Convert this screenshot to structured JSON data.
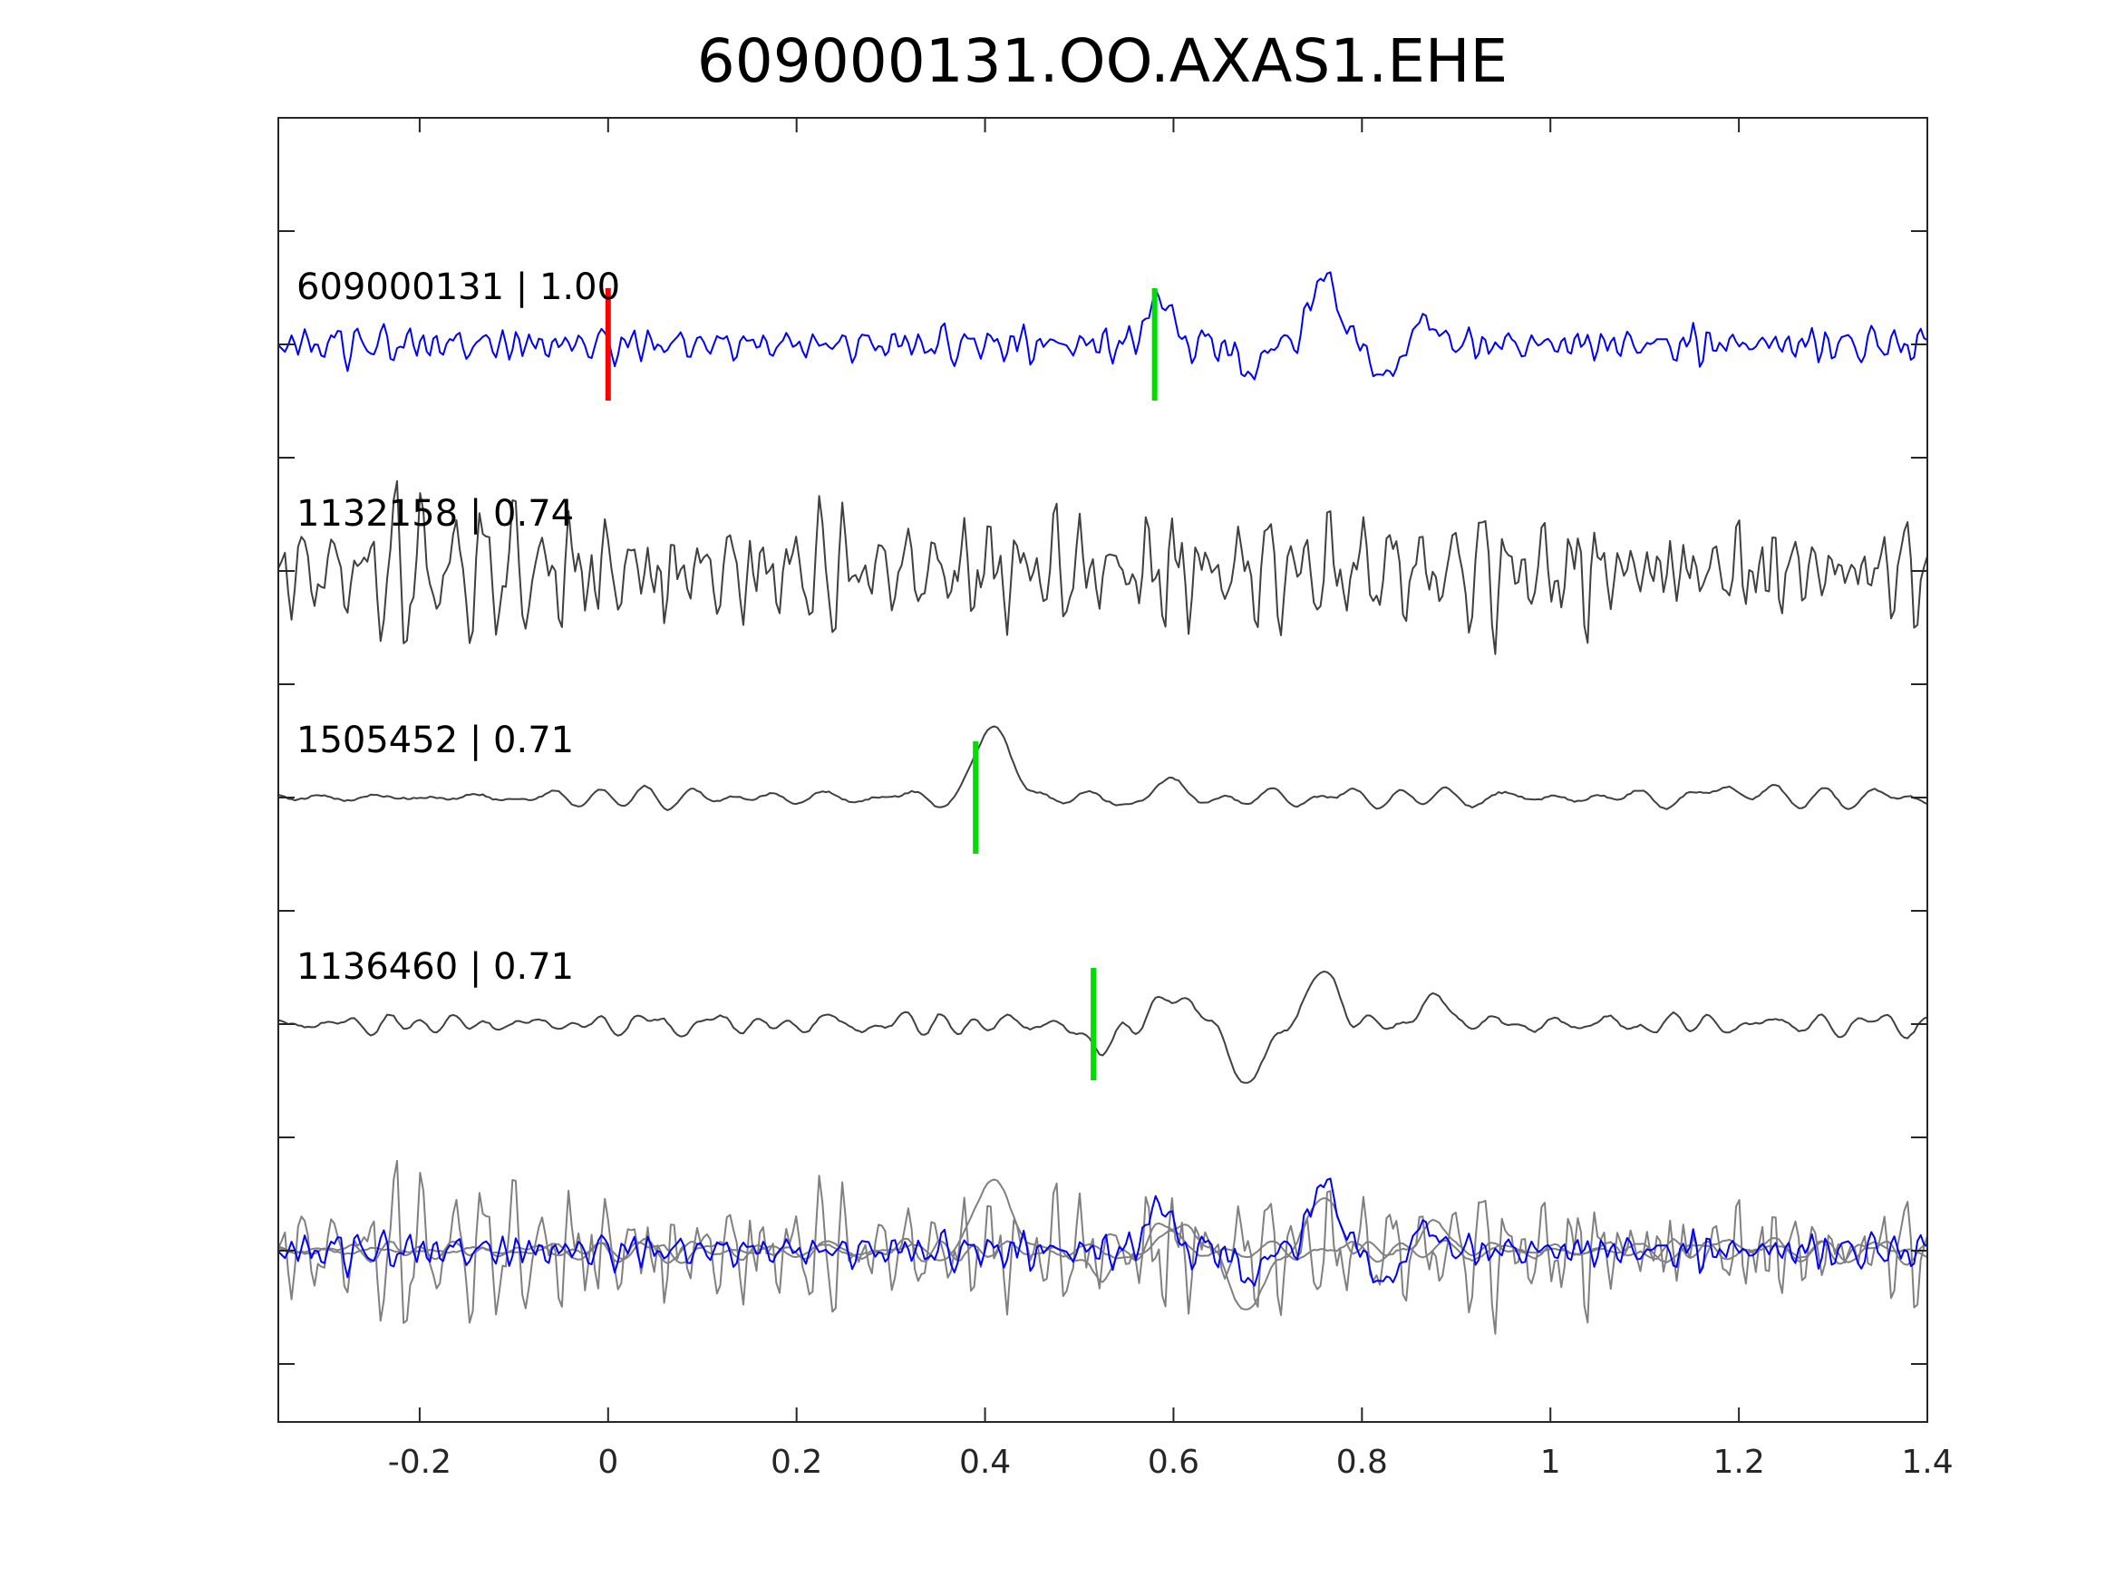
{
  "chart_data": {
    "type": "line",
    "title": "609000131.OO.AXAS1.EHE",
    "xlabel": "",
    "ylabel": "",
    "xlim": [
      -0.35,
      1.4
    ],
    "x_ticks": [
      {
        "value": -0.2,
        "label": "-0.2"
      },
      {
        "value": 0,
        "label": "0"
      },
      {
        "value": 0.2,
        "label": "0.2"
      },
      {
        "value": 0.4,
        "label": "0.4"
      },
      {
        "value": 0.6,
        "label": "0.6"
      },
      {
        "value": 0.8,
        "label": "0.8"
      },
      {
        "value": 1,
        "label": "1"
      },
      {
        "value": 1.2,
        "label": "1.2"
      },
      {
        "value": 1.4,
        "label": "1.4"
      }
    ],
    "y_tick_count": 11,
    "grid": false,
    "traces": [
      {
        "label": "609000131 | 1.00",
        "color": "#0000ff",
        "pick_markers": [
          {
            "x": 0.0,
            "color": "#ff0000"
          },
          {
            "x": 0.58,
            "color": "#00dd00"
          }
        ],
        "noise_amp": 0.14,
        "noise_freq": 55,
        "seed": 3,
        "wavelets": [
          {
            "t": 0.585,
            "amp": 0.85,
            "w": 0.022,
            "f": 7
          },
          {
            "t": 0.68,
            "amp": -0.55,
            "w": 0.02,
            "f": 9
          },
          {
            "t": 0.76,
            "amp": 1.2,
            "w": 0.025,
            "f": 6
          },
          {
            "t": 0.83,
            "amp": -0.7,
            "w": 0.025,
            "f": 6
          },
          {
            "t": 0.86,
            "amp": 0.45,
            "w": 0.03,
            "f": 5
          }
        ]
      },
      {
        "label": "1132158 | 0.74",
        "color": "#404040",
        "pick_markers": [],
        "noise_amp": 0.45,
        "noise_freq": 62,
        "seed": 11,
        "wavelets": [
          {
            "t": 0.06,
            "amp": -0.5,
            "w": 0.012,
            "f": 30
          },
          {
            "t": 0.4,
            "amp": 0.35,
            "w": 0.03,
            "f": 30
          }
        ]
      },
      {
        "label": "1505452 | 0.71",
        "color": "#404040",
        "pick_markers": [
          {
            "x": 0.39,
            "color": "#00dd00"
          }
        ],
        "noise_amp": 0.09,
        "noise_freq": 18,
        "seed": 21,
        "wavelets": [
          {
            "t": 0.41,
            "amp": 1.3,
            "w": 0.03,
            "f": 5
          },
          {
            "t": 0.6,
            "amp": 0.25,
            "w": 0.05,
            "f": 8
          },
          {
            "t": 1.2,
            "amp": 0.25,
            "w": 0.03,
            "f": 8
          }
        ]
      },
      {
        "label": "1136460 | 0.71",
        "color": "#404040",
        "pick_markers": [
          {
            "x": 0.515,
            "color": "#00dd00"
          }
        ],
        "noise_amp": 0.1,
        "noise_freq": 20,
        "seed": 37,
        "wavelets": [
          {
            "t": 0.52,
            "amp": -0.55,
            "w": 0.02,
            "f": 7
          },
          {
            "t": 0.6,
            "amp": 0.5,
            "w": 0.04,
            "f": 6
          },
          {
            "t": 0.68,
            "amp": -1.05,
            "w": 0.03,
            "f": 6
          },
          {
            "t": 0.76,
            "amp": 0.9,
            "w": 0.03,
            "f": 6
          },
          {
            "t": 0.88,
            "amp": 0.4,
            "w": 0.04,
            "f": 6
          }
        ]
      }
    ],
    "overlay": {
      "reference_color": "#0000ff",
      "others_color": "#808080"
    }
  }
}
